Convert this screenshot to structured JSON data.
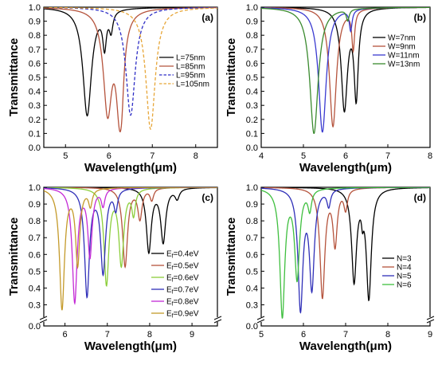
{
  "chart_data": [
    {
      "type": "line",
      "panel_label": "(a)",
      "xlabel": "Wavelength(μm)",
      "ylabel": "Transmittance",
      "xlim": [
        4.5,
        8.5
      ],
      "ylim": [
        0.0,
        1.0
      ],
      "xticks": [
        5,
        6,
        7,
        8
      ],
      "yticks": [
        0.0,
        0.1,
        0.2,
        0.3,
        0.4,
        0.5,
        0.6,
        0.7,
        0.8,
        0.9,
        1.0
      ],
      "legend_position": "right",
      "series": [
        {
          "name": "L=75nm",
          "color": "#000000",
          "dash": false,
          "dip_wavelength": 5.5,
          "min_transmittance": 0.23,
          "width": 0.12
        },
        {
          "name": "L=85nm",
          "color": "#b5533c",
          "dash": false,
          "dip_wavelength": 5.97,
          "min_transmittance": 0.29,
          "width": 0.12
        },
        {
          "name": "L=95nm",
          "color": "#2f2fc6",
          "dash": true,
          "dip_wavelength": 6.5,
          "min_transmittance": 0.23,
          "width": 0.13
        },
        {
          "name": "L=105nm",
          "color": "#e7a638",
          "dash": true,
          "dip_wavelength": 6.96,
          "min_transmittance": 0.13,
          "width": 0.13
        }
      ],
      "secondary_dips": [
        {
          "series": 0,
          "dip_wavelength": 5.9,
          "min_transmittance": 0.75,
          "width": 0.05
        },
        {
          "series": 1,
          "dip_wavelength": 6.3,
          "min_transmittance": 0.85,
          "width": 0.05
        },
        {
          "series": 0,
          "dip_wavelength": 6.05,
          "min_transmittance": 0.86,
          "width": 0.05
        },
        {
          "series": 1,
          "dip_wavelength": 6.25,
          "min_transmittance": 0.3,
          "width": 0.1
        }
      ]
    },
    {
      "type": "line",
      "panel_label": "(b)",
      "xlabel": "Wavelength(μm)",
      "ylabel": "Transmittance",
      "xlim": [
        4,
        8
      ],
      "ylim": [
        0.0,
        1.0
      ],
      "xticks": [
        4,
        5,
        6,
        7,
        8
      ],
      "yticks": [
        0.0,
        0.1,
        0.2,
        0.3,
        0.4,
        0.5,
        0.6,
        0.7,
        0.8,
        0.9,
        1.0
      ],
      "legend_position": "right",
      "series": [
        {
          "name": "W=7nm",
          "color": "#000000",
          "dips": [
            [
              5.97,
              0.28,
              0.09
            ],
            [
              6.25,
              0.38,
              0.06
            ]
          ]
        },
        {
          "name": "W=9nm",
          "color": "#b5533c",
          "dips": [
            [
              5.7,
              0.15,
              0.1
            ],
            [
              6.18,
              0.72,
              0.04
            ]
          ]
        },
        {
          "name": "W=11nm",
          "color": "#3a3ad0",
          "dips": [
            [
              5.45,
              0.11,
              0.11
            ],
            [
              6.12,
              0.85,
              0.04
            ]
          ]
        },
        {
          "name": "W=13nm",
          "color": "#3a8a2e",
          "dips": [
            [
              5.25,
              0.1,
              0.12
            ],
            [
              6.05,
              0.92,
              0.04
            ]
          ]
        }
      ]
    },
    {
      "type": "line",
      "panel_label": "(c)",
      "xlabel": "Wavelength(μm)",
      "ylabel": "Transmittance",
      "xlim": [
        5.5,
        9.6
      ],
      "ylim": [
        0.0,
        1.0
      ],
      "xticks": [
        6,
        7,
        8,
        9
      ],
      "yticks": [
        0.0,
        0.3,
        0.4,
        0.5,
        0.6,
        0.7,
        0.8,
        0.9,
        1.0
      ],
      "axis_break": true,
      "legend_position": "right",
      "series": [
        {
          "name": "Ef=0.4eV",
          "label_base": "E",
          "label_sub": "f",
          "label_rest": "=0.4eV",
          "color": "#000000",
          "dips": [
            [
              8.32,
              0.68,
              0.07
            ],
            [
              7.98,
              0.62,
              0.07
            ],
            [
              8.65,
              0.94,
              0.06
            ]
          ]
        },
        {
          "name": "Ef=0.5eV",
          "label_base": "E",
          "label_sub": "f",
          "label_rest": "=0.5eV",
          "color": "#b5533c",
          "dips": [
            [
              7.42,
              0.53,
              0.07
            ],
            [
              7.77,
              0.82,
              0.06
            ],
            [
              8.05,
              0.93,
              0.05
            ]
          ]
        },
        {
          "name": "Ef=0.6eV",
          "label_base": "E",
          "label_sub": "f",
          "label_rest": "=0.6eV",
          "color": "#8cce3a",
          "dips": [
            [
              6.98,
              0.43,
              0.07
            ],
            [
              7.33,
              0.55,
              0.07
            ],
            [
              7.62,
              0.85,
              0.05
            ]
          ]
        },
        {
          "name": "Ef=0.7eV",
          "label_base": "E",
          "label_sub": "f",
          "label_rest": "=0.7eV",
          "color": "#2f2fb8",
          "dips": [
            [
              6.52,
              0.36,
              0.07
            ],
            [
              6.9,
              0.5,
              0.07
            ],
            [
              7.2,
              0.88,
              0.05
            ]
          ]
        },
        {
          "name": "Ef=0.8eV",
          "label_base": "E",
          "label_sub": "f",
          "label_rest": "=0.8eV",
          "color": "#c42ad6",
          "dips": [
            [
              6.23,
              0.32,
              0.07
            ],
            [
              6.59,
              0.6,
              0.06
            ],
            [
              6.9,
              0.9,
              0.05
            ]
          ]
        },
        {
          "name": "Ef=0.9eV",
          "label_base": "E",
          "label_sub": "f",
          "label_rest": "=0.9eV",
          "color": "#c49a2a",
          "dips": [
            [
              5.93,
              0.28,
              0.07
            ],
            [
              6.3,
              0.55,
              0.06
            ],
            [
              6.6,
              0.9,
              0.05
            ]
          ]
        }
      ]
    },
    {
      "type": "line",
      "panel_label": "(d)",
      "xlabel": "Wavelength(μm)",
      "ylabel": "Transmittance",
      "xlim": [
        5,
        9
      ],
      "ylim": [
        0.0,
        1.0
      ],
      "xticks": [
        5,
        6,
        7,
        8,
        9
      ],
      "yticks": [
        0.0,
        0.3,
        0.4,
        0.5,
        0.6,
        0.7,
        0.8,
        0.9,
        1.0
      ],
      "axis_break": true,
      "legend_position": "right",
      "series": [
        {
          "name": "N=3",
          "color": "#000000",
          "dips": [
            [
              7.2,
              0.45,
              0.07
            ],
            [
              7.55,
              0.35,
              0.07
            ],
            [
              7.4,
              0.9,
              0.03
            ]
          ]
        },
        {
          "name": "N=4",
          "color": "#b5533c",
          "dips": [
            [
              6.45,
              0.35,
              0.07
            ],
            [
              6.75,
              0.67,
              0.06
            ],
            [
              7.0,
              0.88,
              0.05
            ]
          ]
        },
        {
          "name": "N=5",
          "color": "#2f2fb8",
          "dips": [
            [
              5.93,
              0.29,
              0.07
            ],
            [
              6.2,
              0.42,
              0.07
            ],
            [
              6.6,
              0.9,
              0.05
            ]
          ]
        },
        {
          "name": "N=6",
          "color": "#3fbf3f",
          "dips": [
            [
              5.5,
              0.24,
              0.07
            ],
            [
              5.85,
              0.47,
              0.07
            ],
            [
              6.15,
              0.88,
              0.05
            ]
          ]
        }
      ]
    }
  ]
}
